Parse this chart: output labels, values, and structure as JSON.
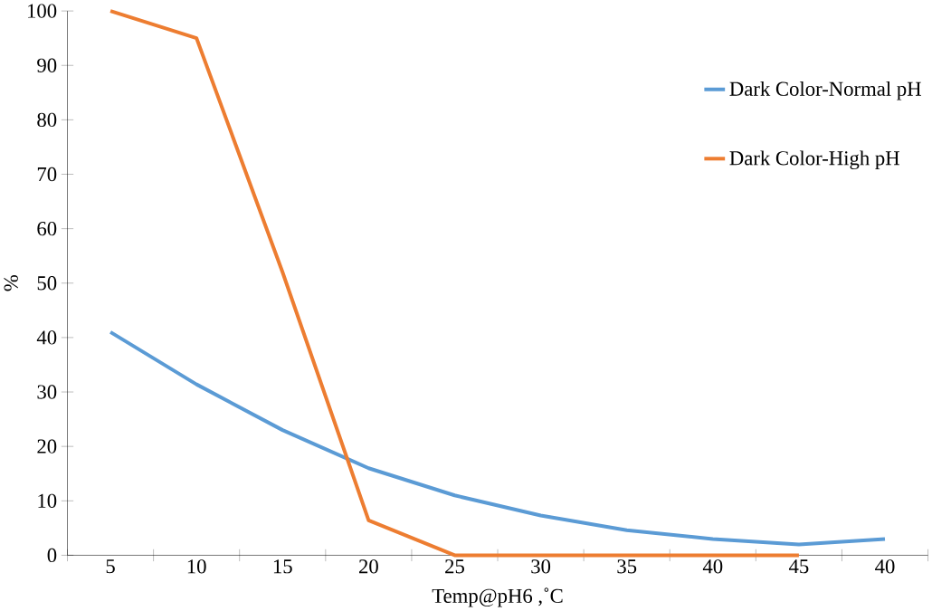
{
  "chart_data": {
    "type": "line",
    "xlabel": "Temp@pH6 ,˚C",
    "ylabel": "%",
    "categories": [
      "5",
      "10",
      "15",
      "20",
      "25",
      "30",
      "35",
      "40",
      "45",
      "40"
    ],
    "series": [
      {
        "name": "Dark Color-Normal pH",
        "color": "#5b9bd5",
        "values": [
          41,
          31.4,
          23,
          16,
          11,
          7.3,
          4.6,
          3,
          2,
          3
        ]
      },
      {
        "name": "Dark Color-High pH",
        "color": "#ed7d31",
        "values": [
          100,
          95,
          52,
          6.4,
          0,
          0,
          0,
          0,
          0,
          null
        ]
      }
    ],
    "ylim": [
      0,
      100
    ],
    "yticks": [
      0,
      10,
      20,
      30,
      40,
      50,
      60,
      70,
      80,
      90,
      100
    ],
    "grid": false,
    "legend": "top right",
    "marker": "none",
    "line_style": "solid"
  }
}
